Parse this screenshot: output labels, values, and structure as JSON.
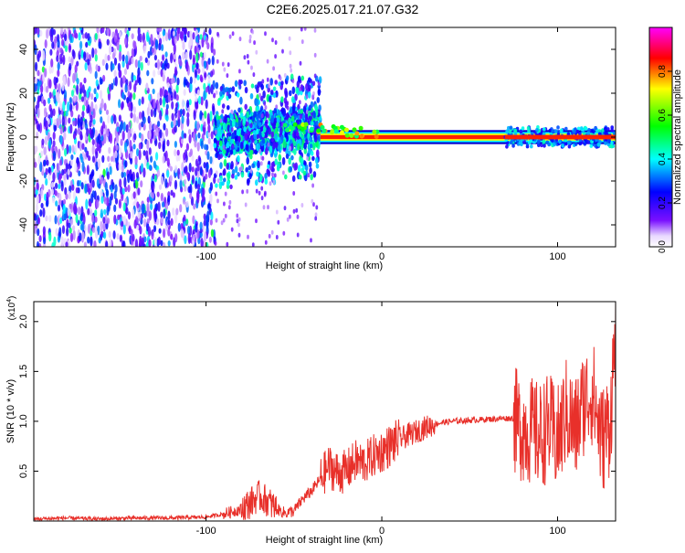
{
  "title": "C2E6.2025.017.21.07.G32",
  "chart_data": [
    {
      "type": "heatmap",
      "title": "C2E6.2025.017.21.07.G32",
      "xlabel": "Height of straight line (km)",
      "ylabel": "Frequency (Hz)",
      "xlim": [
        -198,
        133
      ],
      "ylim": [
        -50,
        50
      ],
      "x_ticks": [
        -100,
        0,
        100
      ],
      "y_ticks": [
        40,
        20,
        0,
        -20,
        -40
      ],
      "colorbar": {
        "label": "Normalized spectral amplitude",
        "range": [
          0,
          1
        ],
        "ticks": [
          0.0,
          0.2,
          0.4,
          0.6,
          0.8
        ],
        "colormap": [
          "#ffffff",
          "#6e00ff",
          "#0000ff",
          "#00ffff",
          "#00ff00",
          "#ffff00",
          "#ff0000",
          "#ff00ff"
        ]
      },
      "regions": [
        {
          "x": [
            -198,
            -95
          ],
          "description_amplitude": 0.25,
          "freq_spread": [
            -50,
            50
          ]
        },
        {
          "x": [
            -95,
            -35
          ],
          "description_amplitude": 0.4,
          "freq_spread": [
            -10,
            15
          ]
        },
        {
          "x": [
            -35,
            70
          ],
          "description_amplitude": 0.95,
          "freq_center": 0
        },
        {
          "x": [
            70,
            133
          ],
          "description_amplitude": 0.75,
          "freq_center": 0
        }
      ]
    },
    {
      "type": "line",
      "xlabel": "Height of straight line (km)",
      "ylabel": "SNR (10 * v/v)",
      "y_multiplier": "(x10",
      "y_multiplier_exp": "4",
      "xlim": [
        -198,
        133
      ],
      "ylim": [
        0,
        2.2
      ],
      "x_ticks": [
        -100,
        0,
        100
      ],
      "y_ticks": [
        0.5,
        1.0,
        1.5,
        2.0
      ],
      "series_color": "#e8302a",
      "x": [
        -198,
        -180,
        -160,
        -140,
        -120,
        -100,
        -90,
        -80,
        -75,
        -70,
        -65,
        -60,
        -55,
        -50,
        -45,
        -40,
        -35,
        -30,
        -25,
        -20,
        -15,
        -10,
        -5,
        0,
        5,
        10,
        15,
        20,
        25,
        30,
        35,
        40,
        50,
        60,
        70,
        75,
        78,
        85,
        90,
        95,
        100,
        105,
        110,
        115,
        120,
        125,
        130,
        133
      ],
      "y": [
        0.02,
        0.03,
        0.02,
        0.03,
        0.03,
        0.04,
        0.07,
        0.12,
        0.18,
        0.25,
        0.2,
        0.12,
        0.08,
        0.1,
        0.22,
        0.3,
        0.42,
        0.55,
        0.48,
        0.5,
        0.6,
        0.58,
        0.65,
        0.7,
        0.76,
        0.82,
        0.86,
        0.9,
        0.94,
        0.97,
        0.99,
        1.0,
        1.01,
        1.02,
        1.03,
        1.03,
        0.95,
        0.9,
        0.85,
        0.95,
        0.8,
        1.1,
        0.9,
        1.2,
        1.3,
        0.8,
        1.0,
        1.95
      ]
    }
  ]
}
